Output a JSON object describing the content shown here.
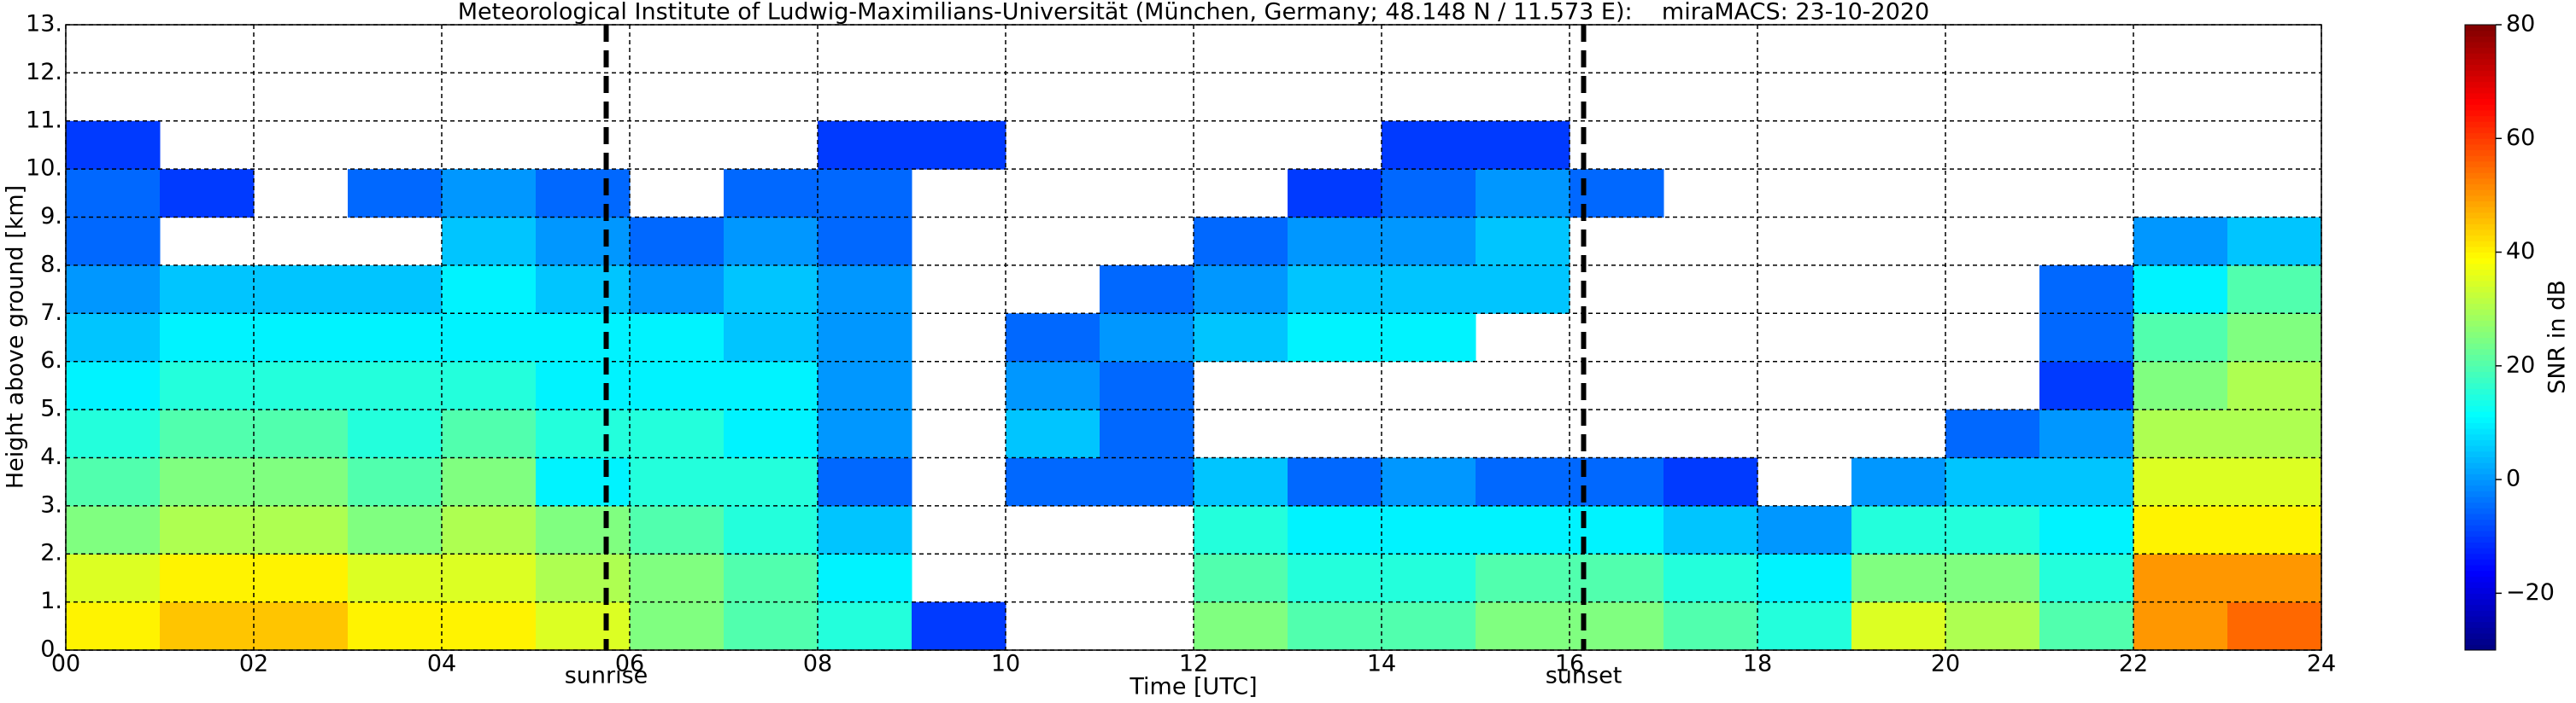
{
  "chart_data": {
    "type": "heatmap",
    "title": "Meteorological Institute of Ludwig-Maximilians-Universität (München, Germany; 48.148 N / 11.573 E):    miraMACS: 23-10-2020",
    "x_label": "Time [UTC]",
    "y_label": "Height above ground [km]",
    "colorbar_label": "SNR in dB",
    "xlim": [
      0,
      24
    ],
    "ylim": [
      0,
      13
    ],
    "zlim": [
      -30,
      80
    ],
    "grid": true,
    "xticks": [
      {
        "value": 0,
        "label": "00"
      },
      {
        "value": 2,
        "label": "02"
      },
      {
        "value": 4,
        "label": "04"
      },
      {
        "value": 6,
        "label": "06"
      },
      {
        "value": 8,
        "label": "08"
      },
      {
        "value": 10,
        "label": "10"
      },
      {
        "value": 12,
        "label": "12"
      },
      {
        "value": 14,
        "label": "14"
      },
      {
        "value": 16,
        "label": "16"
      },
      {
        "value": 18,
        "label": "18"
      },
      {
        "value": 20,
        "label": "20"
      },
      {
        "value": 22,
        "label": "22"
      },
      {
        "value": 24,
        "label": "24"
      }
    ],
    "yticks": [
      {
        "value": 0,
        "label": "0."
      },
      {
        "value": 1,
        "label": "1."
      },
      {
        "value": 2,
        "label": "2."
      },
      {
        "value": 3,
        "label": "3."
      },
      {
        "value": 4,
        "label": "4."
      },
      {
        "value": 5,
        "label": "5."
      },
      {
        "value": 6,
        "label": "6."
      },
      {
        "value": 7,
        "label": "7."
      },
      {
        "value": 8,
        "label": "8."
      },
      {
        "value": 9,
        "label": "9."
      },
      {
        "value": 10,
        "label": "10."
      },
      {
        "value": 11,
        "label": "11."
      },
      {
        "value": 12,
        "label": "12."
      },
      {
        "value": 13,
        "label": "13."
      }
    ],
    "zticks": [
      {
        "value": -20,
        "label": "−20"
      },
      0,
      20,
      40,
      60,
      80
    ],
    "annotations": [
      {
        "text": "sunrise",
        "x": 5.75
      },
      {
        "text": "sunset",
        "x": 16.15
      }
    ],
    "x": [
      0,
      1,
      2,
      3,
      4,
      5,
      6,
      7,
      8,
      9,
      10,
      11,
      12,
      13,
      14,
      15,
      16,
      17,
      18,
      19,
      20,
      21,
      22,
      23
    ],
    "y": [
      0,
      1,
      2,
      3,
      4,
      5,
      6,
      7,
      8,
      9,
      10,
      11,
      12
    ],
    "z": [
      [
        40,
        35,
        25,
        20,
        15,
        10,
        5,
        0,
        -5,
        -5,
        -10,
        null,
        null
      ],
      [
        45,
        40,
        30,
        25,
        20,
        15,
        10,
        5,
        null,
        -10,
        null,
        null,
        null
      ],
      [
        45,
        40,
        30,
        25,
        20,
        15,
        10,
        5,
        null,
        null,
        null,
        null,
        null
      ],
      [
        40,
        35,
        25,
        20,
        15,
        15,
        10,
        5,
        null,
        -5,
        null,
        null,
        null
      ],
      [
        40,
        35,
        30,
        25,
        20,
        15,
        10,
        10,
        5,
        0,
        null,
        null,
        null
      ],
      [
        35,
        30,
        25,
        10,
        15,
        10,
        10,
        5,
        0,
        -5,
        null,
        null,
        null
      ],
      [
        25,
        25,
        20,
        15,
        15,
        10,
        10,
        0,
        -5,
        null,
        null,
        null,
        null
      ],
      [
        20,
        20,
        15,
        15,
        10,
        10,
        5,
        5,
        0,
        -5,
        null,
        null,
        null
      ],
      [
        15,
        10,
        5,
        -5,
        0,
        0,
        0,
        0,
        -5,
        -5,
        -10,
        null,
        null
      ],
      [
        -10,
        null,
        null,
        null,
        null,
        null,
        null,
        null,
        null,
        null,
        -10,
        null,
        null
      ],
      [
        null,
        null,
        null,
        -5,
        5,
        0,
        -5,
        null,
        null,
        null,
        null,
        null,
        null
      ],
      [
        null,
        null,
        null,
        -5,
        -5,
        -5,
        0,
        -5,
        null,
        null,
        null,
        null,
        null
      ],
      [
        25,
        20,
        15,
        5,
        null,
        null,
        5,
        0,
        -5,
        null,
        null,
        null,
        null
      ],
      [
        20,
        15,
        10,
        -5,
        null,
        null,
        10,
        5,
        0,
        -10,
        null,
        null,
        null
      ],
      [
        20,
        15,
        10,
        0,
        null,
        null,
        10,
        5,
        0,
        -5,
        -10,
        null,
        null
      ],
      [
        25,
        20,
        10,
        -5,
        null,
        null,
        null,
        5,
        5,
        0,
        -10,
        null,
        null
      ],
      [
        25,
        20,
        10,
        -5,
        null,
        null,
        null,
        null,
        null,
        -5,
        null,
        null,
        null
      ],
      [
        20,
        15,
        5,
        -10,
        null,
        null,
        null,
        null,
        null,
        null,
        null,
        null,
        null
      ],
      [
        15,
        10,
        0,
        null,
        null,
        null,
        null,
        null,
        null,
        null,
        null,
        null,
        null
      ],
      [
        35,
        25,
        15,
        0,
        null,
        null,
        null,
        null,
        null,
        null,
        null,
        null,
        null
      ],
      [
        30,
        25,
        15,
        5,
        -5,
        null,
        null,
        null,
        null,
        null,
        null,
        null,
        null
      ],
      [
        20,
        15,
        10,
        5,
        0,
        -10,
        -5,
        -5,
        null,
        null,
        null,
        null,
        null
      ],
      [
        50,
        50,
        40,
        35,
        30,
        25,
        20,
        10,
        0,
        null,
        null,
        null,
        null
      ],
      [
        55,
        50,
        40,
        35,
        30,
        30,
        25,
        20,
        5,
        null,
        null,
        null,
        null
      ]
    ]
  }
}
